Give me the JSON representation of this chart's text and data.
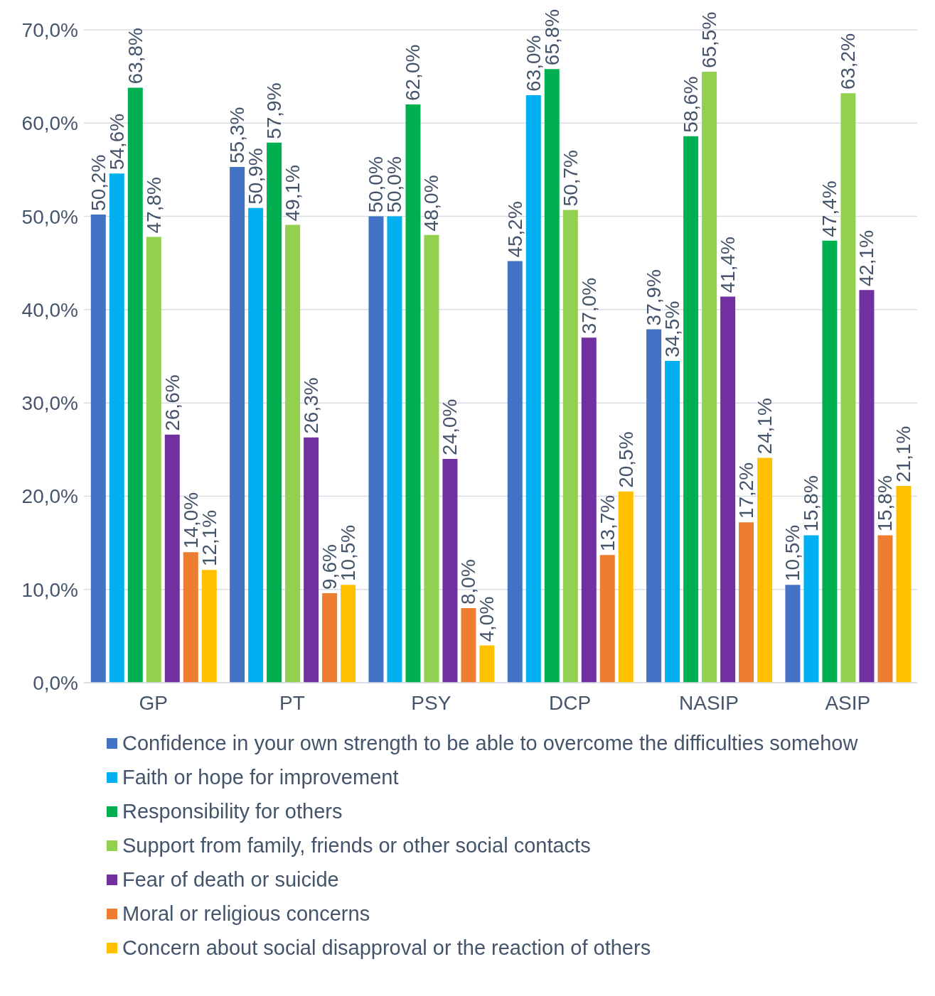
{
  "chart_data": {
    "type": "bar",
    "categories": [
      "GP",
      "PT",
      "PSY",
      "DCP",
      "NASIP",
      "ASIP"
    ],
    "series": [
      {
        "name": "Confidence in your own strength to be able to overcome the difficulties somehow",
        "color": "#4472c4",
        "values": [
          50.2,
          55.3,
          50.0,
          45.2,
          37.9,
          10.5
        ],
        "value_labels": [
          "50,2%",
          "55,3%",
          "50,0%",
          "45,2%",
          "37,9%",
          "10,5%"
        ]
      },
      {
        "name": "Faith or hope for improvement",
        "color": "#00b0f0",
        "values": [
          54.6,
          50.9,
          50.0,
          63.0,
          34.5,
          15.8
        ],
        "value_labels": [
          "54,6%",
          "50,9%",
          "50,0%",
          "63,0%",
          "34,5%",
          "15,8%"
        ]
      },
      {
        "name": "Responsibility for others",
        "color": "#00b050",
        "values": [
          63.8,
          57.9,
          62.0,
          65.8,
          58.6,
          47.4
        ],
        "value_labels": [
          "63,8%",
          "57,9%",
          "62,0%",
          "65,8%",
          "58,6%",
          "47,4%"
        ]
      },
      {
        "name": "Support from family, friends or other social contacts",
        "color": "#92d050",
        "values": [
          47.8,
          49.1,
          48.0,
          50.7,
          65.5,
          63.2
        ],
        "value_labels": [
          "47,8%",
          "49,1%",
          "48,0%",
          "50,7%",
          "65,5%",
          "63,2%"
        ]
      },
      {
        "name": "Fear of death or suicide",
        "color": "#7030a0",
        "values": [
          26.6,
          26.3,
          24.0,
          37.0,
          41.4,
          42.1
        ],
        "value_labels": [
          "26,6%",
          "26,3%",
          "24,0%",
          "37,0%",
          "41,4%",
          "42,1%"
        ]
      },
      {
        "name": "Moral or religious concerns",
        "color": "#ed7d31",
        "values": [
          14.0,
          9.6,
          8.0,
          13.7,
          17.2,
          15.8
        ],
        "value_labels": [
          "14,0%",
          "9,6%",
          "8,0%",
          "13,7%",
          "17,2%",
          "15,8%"
        ]
      },
      {
        "name": "Concern about social disapproval or the reaction of others",
        "color": "#ffc000",
        "values": [
          12.1,
          10.5,
          4.0,
          20.5,
          24.1,
          21.1
        ],
        "value_labels": [
          "12,1%",
          "10,5%",
          "4,0%",
          "20,5%",
          "24,1%",
          "21,1%"
        ]
      }
    ],
    "ylim": [
      0,
      70
    ],
    "yticks": [
      {
        "value": 0,
        "label": "0,0%"
      },
      {
        "value": 10,
        "label": "10,0%"
      },
      {
        "value": 20,
        "label": "20,0%"
      },
      {
        "value": 30,
        "label": "30,0%"
      },
      {
        "value": 40,
        "label": "40,0%"
      },
      {
        "value": 50,
        "label": "50,0%"
      },
      {
        "value": 60,
        "label": "60,0%"
      },
      {
        "value": 70,
        "label": "70,0%"
      }
    ],
    "grid": "y",
    "legend": "bottom"
  }
}
